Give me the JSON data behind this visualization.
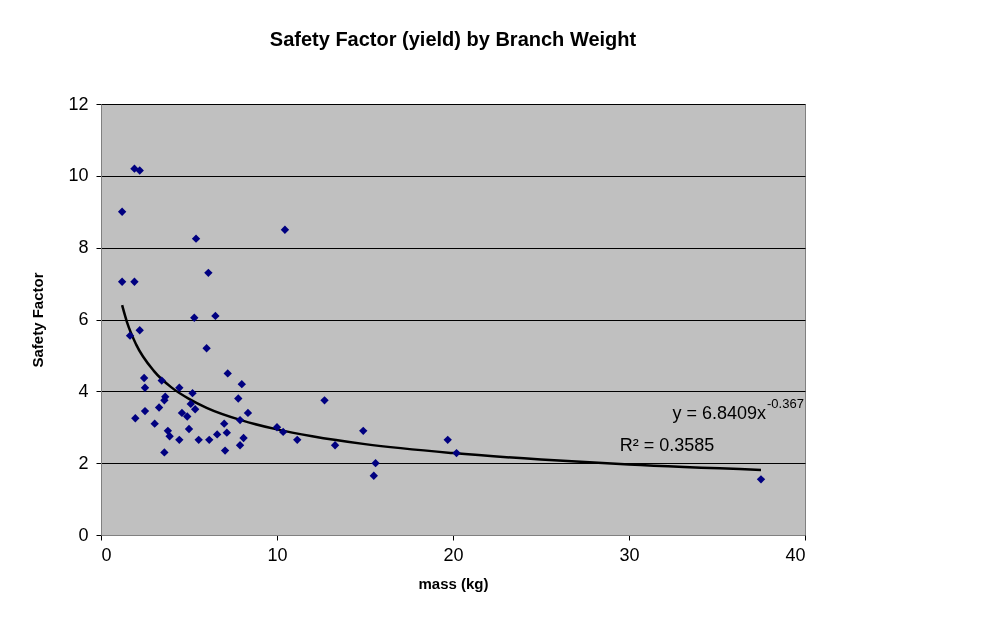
{
  "chart_data": {
    "type": "scatter",
    "title": "Safety Factor (yield) by Branch Weight",
    "xlabel": "mass (kg)",
    "ylabel": "Safety Factor",
    "series": [
      {
        "type": "scatter",
        "color": "#000080",
        "marker": "diamond",
        "x": [
          1.2,
          1.2,
          1.9,
          2.2,
          1.9,
          5.4,
          10.45,
          6.1,
          5.3,
          6.5,
          6.0,
          2.2,
          1.65,
          7.2,
          2.45,
          2.5,
          3.45,
          8.0,
          4.45,
          5.2,
          3.65,
          7.8,
          3.6,
          2.5,
          3.3,
          5.1,
          5.35,
          4.6,
          4.9,
          8.35,
          1.95,
          3.05,
          7.9,
          7.0,
          7.15,
          5.0,
          3.8,
          3.9,
          4.45,
          5.55,
          6.15,
          6.6,
          8.1,
          7.9,
          7.05,
          3.6,
          10.0,
          10.35,
          11.15,
          12.7,
          13.3,
          14.9,
          15.6,
          15.5,
          19.7,
          20.2,
          37.5
        ],
        "values": [
          9.0,
          7.05,
          10.2,
          10.15,
          7.05,
          8.25,
          8.5,
          7.3,
          6.05,
          6.1,
          5.2,
          5.7,
          5.55,
          4.5,
          4.37,
          4.1,
          4.3,
          4.2,
          4.1,
          3.95,
          3.85,
          3.8,
          3.75,
          3.45,
          3.55,
          3.65,
          3.5,
          3.4,
          3.3,
          3.4,
          3.25,
          3.1,
          3.2,
          3.1,
          2.85,
          2.95,
          2.9,
          2.75,
          2.65,
          2.65,
          2.65,
          2.8,
          2.7,
          2.5,
          2.35,
          2.3,
          3.0,
          2.87,
          2.65,
          3.75,
          2.5,
          2.9,
          2.0,
          1.65,
          2.65,
          2.28,
          1.55
        ]
      },
      {
        "type": "line",
        "color": "#000000",
        "marker": "none",
        "x": [
          1.2,
          1.5,
          2,
          3,
          4,
          5,
          6,
          8,
          10,
          12,
          15,
          20,
          25,
          30,
          37.5
        ],
        "values": [
          6.4,
          5.89,
          5.3,
          4.57,
          4.11,
          3.79,
          3.54,
          3.19,
          2.94,
          2.75,
          2.53,
          2.28,
          2.1,
          1.96,
          1.81
        ]
      }
    ],
    "xlim": [
      0,
      40
    ],
    "xticks": [
      0,
      10,
      20,
      30,
      40
    ],
    "ylim": [
      0,
      12
    ],
    "yticks": [
      0,
      2,
      4,
      6,
      8,
      10,
      12
    ],
    "grid": "y",
    "annotations": [
      "y = 6.8409x$^{-0.367}$",
      "R² = 0.3585"
    ]
  }
}
